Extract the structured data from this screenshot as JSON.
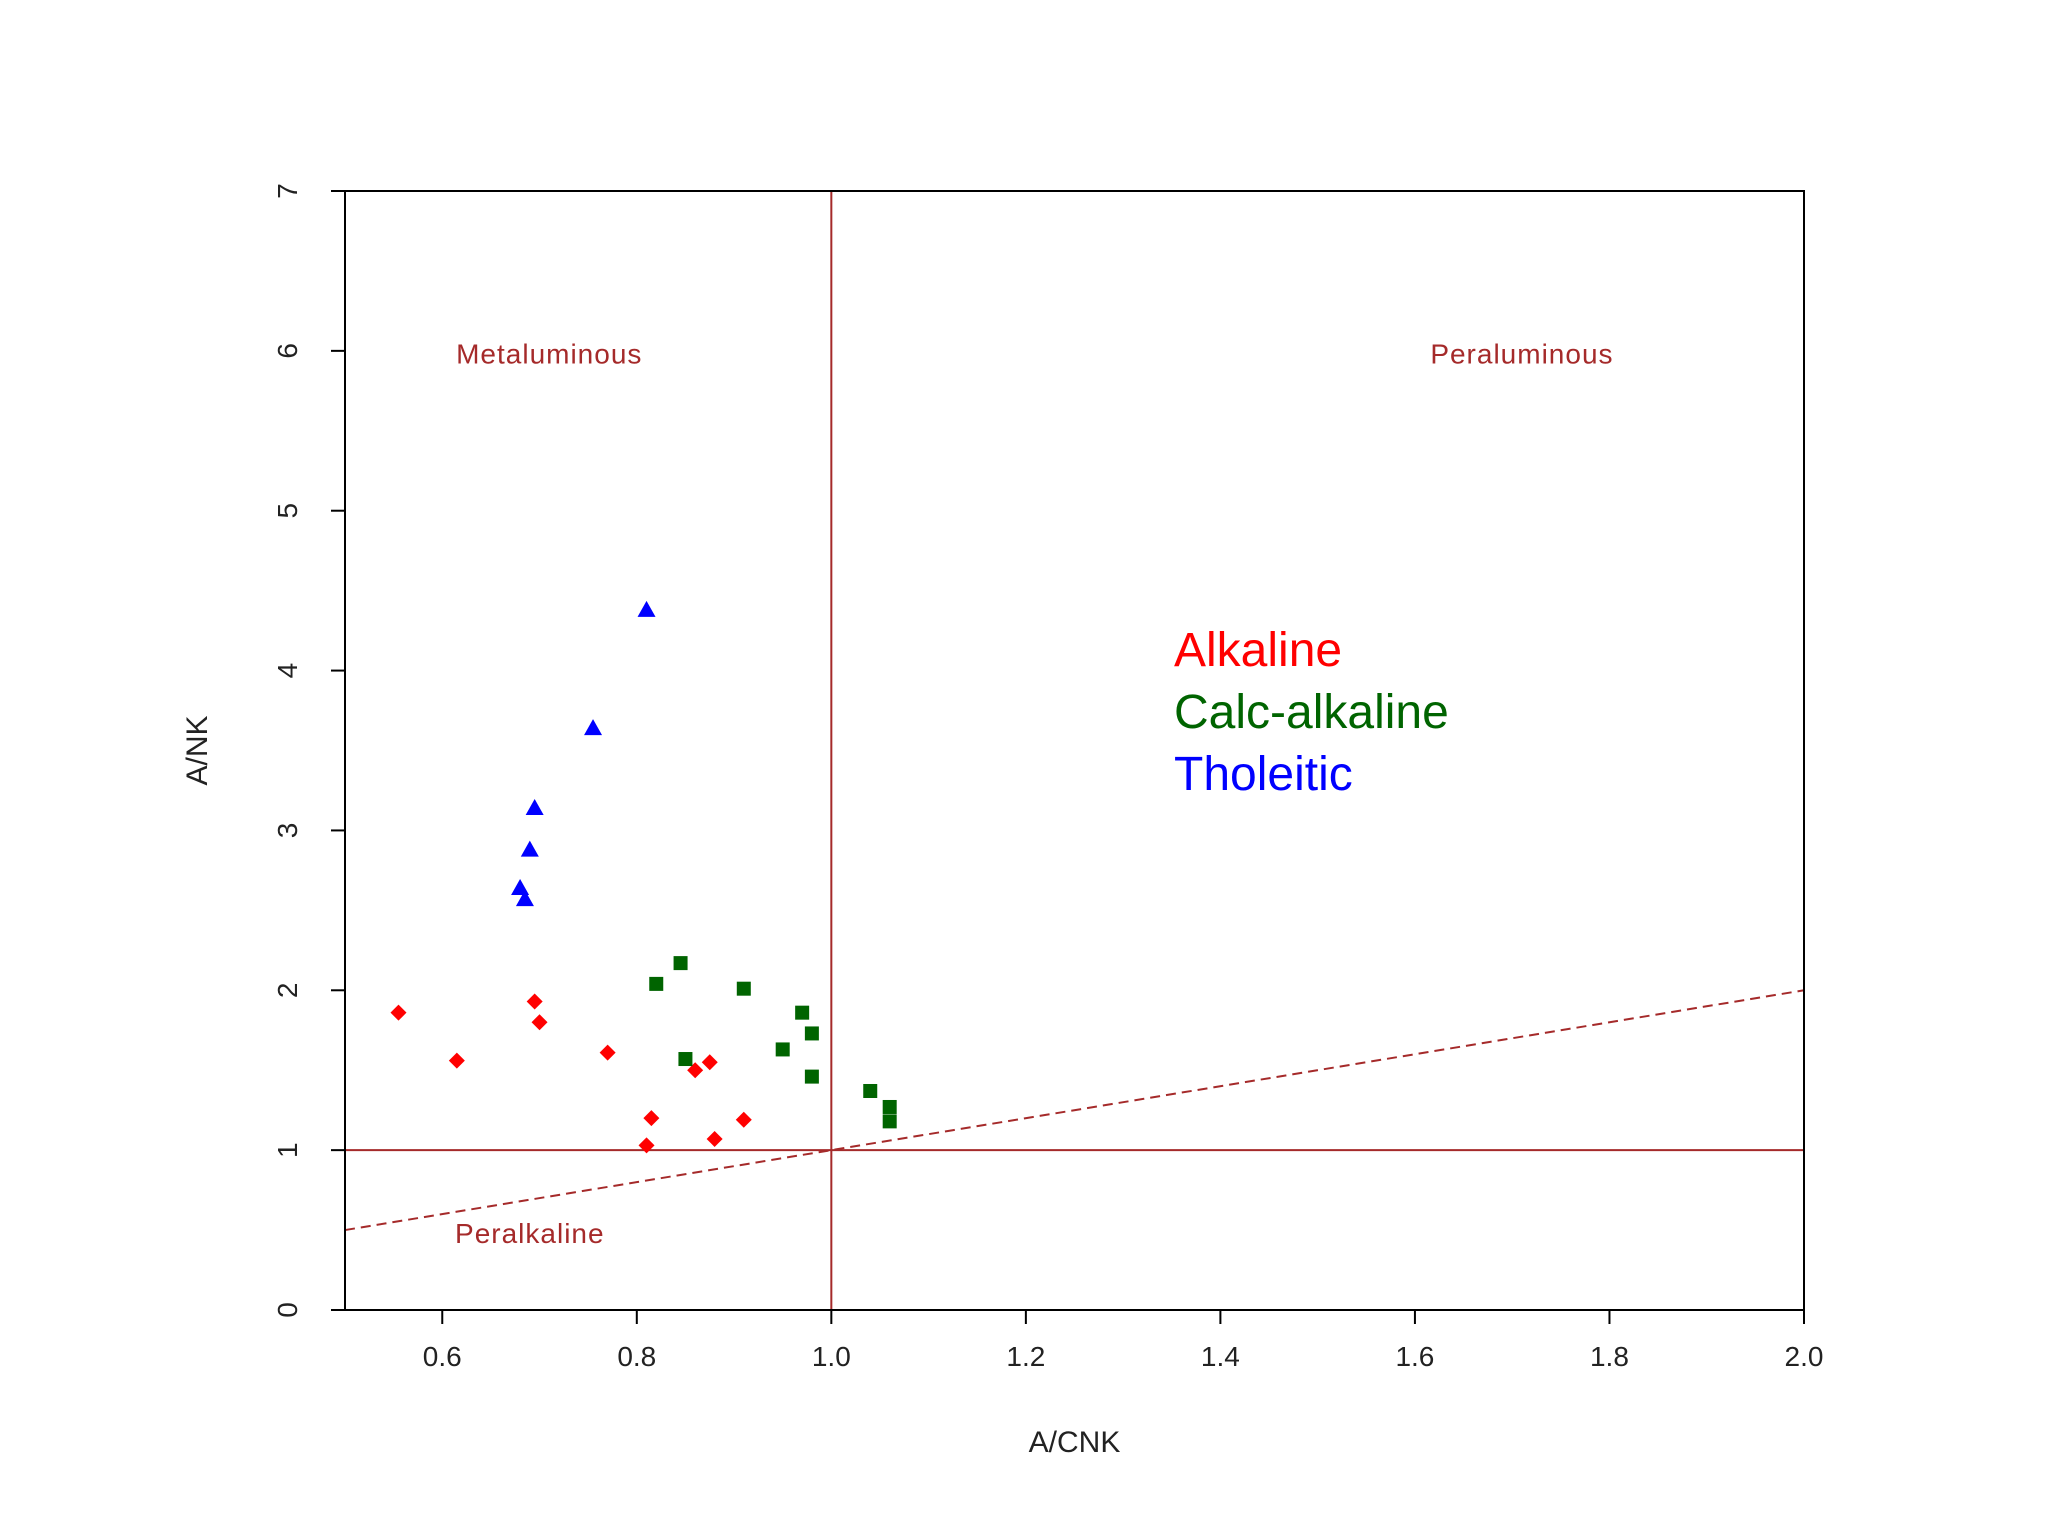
{
  "chart_data": {
    "type": "scatter",
    "title": "",
    "xlabel": "A/CNK",
    "ylabel": "A/NK",
    "xlim": [
      0.5,
      2.0
    ],
    "ylim": [
      0,
      7
    ],
    "xticks": [
      "0.6",
      "0.8",
      "1.0",
      "1.2",
      "1.4",
      "1.6",
      "1.8",
      "2.0"
    ],
    "xtick_values": [
      0.6,
      0.8,
      1.0,
      1.2,
      1.4,
      1.6,
      1.8,
      2.0
    ],
    "yticks": [
      "0",
      "1",
      "2",
      "3",
      "4",
      "5",
      "6",
      "7"
    ],
    "ytick_values": [
      0,
      1,
      2,
      3,
      4,
      5,
      6,
      7
    ],
    "grid": false,
    "reference_lines": {
      "vertical_x": 1.0,
      "horizontal_y": 1.0,
      "dashed_line": [
        [
          0.5,
          0.5
        ],
        [
          2.0,
          2.0
        ]
      ],
      "color": "#a52a2a"
    },
    "region_labels": [
      "Metaluminous",
      "Peraluminous",
      "Peralkaline"
    ],
    "legend_placement": "center-right, inside plot",
    "series": [
      {
        "name": "Alkaline",
        "color": "#ff0000",
        "marker": "diamond",
        "points": [
          [
            0.555,
            1.86
          ],
          [
            0.615,
            1.56
          ],
          [
            0.695,
            1.93
          ],
          [
            0.7,
            1.8
          ],
          [
            0.77,
            1.61
          ],
          [
            0.815,
            1.2
          ],
          [
            0.81,
            1.03
          ],
          [
            0.86,
            1.5
          ],
          [
            0.875,
            1.55
          ],
          [
            0.88,
            1.07
          ],
          [
            0.91,
            1.19
          ]
        ]
      },
      {
        "name": "Calc-alkaline",
        "color": "#006400",
        "marker": "square",
        "points": [
          [
            0.82,
            2.04
          ],
          [
            0.845,
            2.17
          ],
          [
            0.85,
            1.57
          ],
          [
            0.91,
            2.01
          ],
          [
            0.95,
            1.63
          ],
          [
            0.97,
            1.86
          ],
          [
            0.98,
            1.73
          ],
          [
            0.98,
            1.46
          ],
          [
            1.04,
            1.37
          ],
          [
            1.06,
            1.27
          ],
          [
            1.06,
            1.18
          ]
        ]
      },
      {
        "name": "Tholeitic",
        "color": "#0000ff",
        "marker": "triangle",
        "points": [
          [
            0.81,
            4.38
          ],
          [
            0.755,
            3.64
          ],
          [
            0.695,
            3.14
          ],
          [
            0.69,
            2.88
          ],
          [
            0.68,
            2.64
          ],
          [
            0.685,
            2.57
          ]
        ]
      }
    ]
  }
}
